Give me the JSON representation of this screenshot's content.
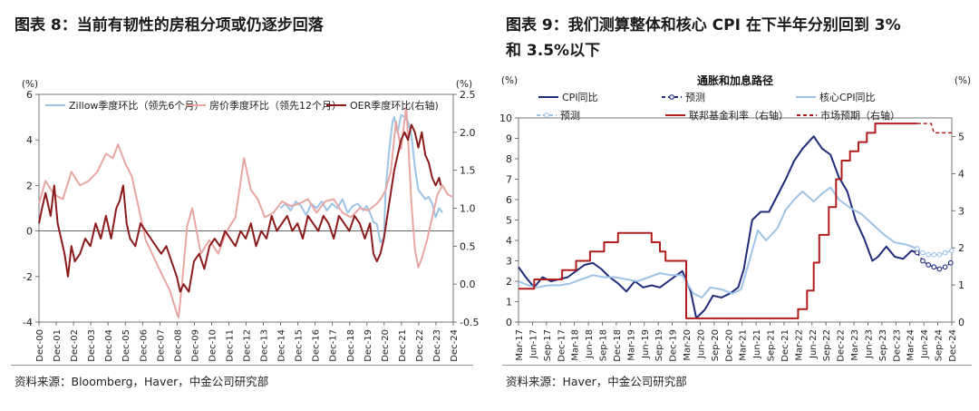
{
  "figures": [
    {
      "title": "图表 8：当前有韧性的房租分项或仍逐步回落",
      "source": "资料来源：Bloomberg，Haver，中金公司研究部"
    },
    {
      "title": "图表 9：我们测算整体和核心 CPI 在下半年分别回到 3%\n和 3.5%以下",
      "source": "资料来源：Haver，中金公司研究部"
    }
  ],
  "chart_data": [
    {
      "type": "line",
      "title": "",
      "y_left_unit": "(%)",
      "y_right_unit": "(%)",
      "ylim_left": [
        -4,
        6
      ],
      "ylim_right": [
        -0.5,
        2.5
      ],
      "yticks_left": [
        "-4",
        "-2",
        "0",
        "2",
        "4",
        "6"
      ],
      "yticks_right": [
        "-0.5",
        "0.0",
        "0.5",
        "1.0",
        "1.5",
        "2.0",
        "2.5"
      ],
      "xlim": [
        2000.92,
        2024.92
      ],
      "x_ticks": [
        "Dec-00",
        "Dec-01",
        "Dec-02",
        "Dec-03",
        "Dec-04",
        "Dec-05",
        "Dec-06",
        "Dec-07",
        "Dec-08",
        "Dec-09",
        "Dec-10",
        "Dec-11",
        "Dec-12",
        "Dec-13",
        "Dec-14",
        "Dec-15",
        "Dec-16",
        "Dec-17",
        "Dec-18",
        "Dec-19",
        "Dec-20",
        "Dec-21",
        "Dec-22",
        "Dec-23",
        "Dec-24"
      ],
      "legend_position": "top",
      "series": [
        {
          "name": "Zillow季度环比（领先6个月）",
          "color": "#9dc3e6",
          "axis": "left",
          "x": [
            2014.9,
            2015.2,
            2015.5,
            2015.8,
            2016.1,
            2016.4,
            2016.7,
            2017.0,
            2017.3,
            2017.6,
            2017.9,
            2018.2,
            2018.5,
            2018.8,
            2019.1,
            2019.4,
            2019.7,
            2019.9,
            2020.1,
            2020.3,
            2020.5,
            2020.7,
            2020.9,
            2021.0,
            2021.2,
            2021.4,
            2021.5,
            2021.7,
            2021.9,
            2022.1,
            2022.3,
            2022.5,
            2022.7,
            2022.9,
            2023.1,
            2023.3,
            2023.5,
            2023.7,
            2023.9,
            2024.1,
            2024.3
          ],
          "values": [
            1.0,
            1.2,
            0.9,
            1.3,
            1.1,
            0.7,
            1.2,
            1.0,
            1.3,
            0.9,
            1.2,
            1.0,
            1.4,
            0.8,
            1.1,
            1.2,
            0.9,
            1.1,
            0.8,
            0.4,
            0.3,
            -0.5,
            -0.3,
            1.8,
            3.5,
            4.8,
            5.0,
            4.3,
            5.1,
            5.0,
            4.8,
            4.2,
            2.8,
            1.8,
            1.6,
            1.4,
            1.5,
            1.2,
            0.6,
            1.0,
            0.8
          ]
        },
        {
          "name": "房价季度环比（领先12个月）",
          "color": "#e8a6a2",
          "axis": "left",
          "x": [
            2000.92,
            2001.3,
            2001.8,
            2002.3,
            2002.8,
            2003.3,
            2003.8,
            2004.3,
            2004.8,
            2005.2,
            2005.5,
            2005.9,
            2006.3,
            2006.7,
            2007.1,
            2007.6,
            2008.1,
            2008.5,
            2008.9,
            2009.0,
            2009.2,
            2009.5,
            2009.8,
            2010.3,
            2010.8,
            2011.3,
            2011.8,
            2012.3,
            2012.8,
            2013.2,
            2013.6,
            2014.0,
            2014.5,
            2015.0,
            2015.5,
            2016.0,
            2016.5,
            2017.0,
            2017.5,
            2018.0,
            2018.5,
            2019.0,
            2019.5,
            2020.0,
            2020.5,
            2020.8,
            2021.0,
            2021.3,
            2021.6,
            2021.9,
            2022.2,
            2022.5,
            2022.7,
            2022.9,
            2023.1,
            2023.4,
            2023.7,
            2024.0,
            2024.3,
            2024.6,
            2024.85
          ],
          "values": [
            1.2,
            2.2,
            1.6,
            1.4,
            2.6,
            2.0,
            2.2,
            2.6,
            3.4,
            3.2,
            3.8,
            3.0,
            2.4,
            1.0,
            -0.4,
            -1.2,
            -2.0,
            -2.6,
            -3.6,
            -3.8,
            -2.4,
            0.2,
            1.0,
            -1.0,
            -0.4,
            -1.0,
            0.0,
            0.6,
            3.2,
            1.8,
            1.4,
            0.6,
            0.8,
            1.3,
            1.1,
            1.2,
            1.4,
            0.8,
            1.3,
            1.4,
            0.8,
            0.6,
            1.0,
            0.9,
            1.2,
            1.5,
            1.8,
            2.6,
            4.8,
            3.6,
            5.5,
            1.2,
            -0.8,
            -1.6,
            -1.2,
            -0.4,
            0.6,
            1.6,
            2.0,
            1.6,
            1.5
          ]
        },
        {
          "name": "OER季度环比(右轴)",
          "color": "#8b1a1a",
          "axis": "right",
          "x": [
            2000.92,
            2001.1,
            2001.3,
            2001.6,
            2001.8,
            2002.0,
            2002.2,
            2002.4,
            2002.6,
            2002.8,
            2003.0,
            2003.3,
            2003.6,
            2003.9,
            2004.2,
            2004.5,
            2004.8,
            2005.1,
            2005.4,
            2005.6,
            2005.8,
            2006.0,
            2006.2,
            2006.5,
            2006.8,
            2007.1,
            2007.4,
            2007.7,
            2008.0,
            2008.3,
            2008.6,
            2008.9,
            2009.1,
            2009.3,
            2009.6,
            2009.9,
            2010.2,
            2010.5,
            2010.8,
            2011.1,
            2011.4,
            2011.7,
            2012.0,
            2012.3,
            2012.6,
            2012.9,
            2013.2,
            2013.5,
            2013.8,
            2014.1,
            2014.4,
            2014.7,
            2015.0,
            2015.3,
            2015.6,
            2015.9,
            2016.2,
            2016.5,
            2016.8,
            2017.1,
            2017.4,
            2017.7,
            2018.0,
            2018.3,
            2018.6,
            2018.9,
            2019.2,
            2019.5,
            2019.8,
            2020.1,
            2020.3,
            2020.5,
            2020.7,
            2020.9,
            2021.1,
            2021.3,
            2021.5,
            2021.7,
            2021.9,
            2022.1,
            2022.3,
            2022.5,
            2022.7,
            2022.9,
            2023.1,
            2023.3,
            2023.5,
            2023.7,
            2023.9,
            2024.1,
            2024.2
          ],
          "values": [
            0.8,
            1.0,
            1.2,
            0.9,
            1.3,
            0.8,
            0.6,
            0.4,
            0.1,
            0.5,
            0.3,
            0.4,
            0.6,
            0.5,
            0.8,
            0.6,
            0.9,
            0.6,
            1.0,
            1.1,
            1.3,
            0.8,
            0.6,
            0.5,
            0.8,
            0.7,
            0.6,
            0.5,
            0.4,
            0.5,
            0.3,
            0.1,
            -0.1,
            0.0,
            -0.1,
            0.3,
            0.4,
            0.2,
            0.5,
            0.6,
            0.5,
            0.7,
            0.6,
            0.5,
            0.7,
            0.6,
            0.8,
            0.5,
            0.7,
            0.6,
            0.9,
            0.7,
            0.8,
            0.9,
            0.7,
            0.8,
            0.6,
            0.9,
            0.8,
            0.7,
            0.9,
            0.8,
            0.6,
            0.9,
            0.8,
            0.7,
            0.9,
            0.8,
            0.6,
            0.8,
            0.4,
            0.3,
            0.4,
            0.6,
            0.9,
            1.2,
            1.5,
            1.7,
            1.9,
            2.0,
            1.9,
            2.1,
            2.0,
            1.8,
            2.0,
            1.7,
            1.6,
            1.4,
            1.3,
            1.4,
            1.3
          ]
        }
      ]
    },
    {
      "type": "line",
      "title": "通胀和加息路径",
      "y_left_unit": "(%)",
      "y_right_unit": "(%)",
      "ylim_left": [
        0,
        10
      ],
      "ylim_right": [
        0,
        5.5
      ],
      "yticks_left": [
        "0",
        "1",
        "2",
        "3",
        "4",
        "5",
        "6",
        "7",
        "8",
        "9",
        "10"
      ],
      "yticks_right": [
        "0",
        "1",
        "2",
        "3",
        "4",
        "5"
      ],
      "xlim": [
        2017.17,
        2024.92
      ],
      "x_ticks": [
        "Mar-17",
        "Jun-17",
        "Sep-17",
        "Dec-17",
        "Mar-18",
        "Jun-18",
        "Sep-18",
        "Dec-18",
        "Mar-19",
        "Jun-19",
        "Sep-19",
        "Dec-19",
        "Mar-20",
        "Jun-20",
        "Sep-20",
        "Dec-20",
        "Mar-21",
        "Jun-21",
        "Sep-21",
        "Dec-21",
        "Mar-22",
        "Jun-22",
        "Sep-22",
        "Dec-22",
        "Mar-23",
        "Jun-23",
        "Sep-23",
        "Dec-23",
        "Mar-24",
        "Jun-24",
        "Sep-24",
        "Dec-24"
      ],
      "legend_position": "top",
      "series": [
        {
          "name": "CPI同比",
          "color": "#1f2a7a",
          "axis": "left",
          "style": "solid",
          "x": [
            2017.17,
            2017.3,
            2017.45,
            2017.6,
            2017.75,
            2017.9,
            2018.05,
            2018.2,
            2018.35,
            2018.5,
            2018.65,
            2018.8,
            2018.95,
            2019.1,
            2019.25,
            2019.4,
            2019.55,
            2019.7,
            2019.85,
            2020.0,
            2020.1,
            2020.25,
            2020.35,
            2020.5,
            2020.65,
            2020.8,
            2020.95,
            2021.1,
            2021.2,
            2021.35,
            2021.5,
            2021.65,
            2021.8,
            2021.95,
            2022.1,
            2022.25,
            2022.45,
            2022.6,
            2022.75,
            2022.9,
            2023.05,
            2023.2,
            2023.35,
            2023.5,
            2023.6,
            2023.75,
            2023.9,
            2024.05,
            2024.2,
            2024.3
          ],
          "values": [
            2.7,
            2.2,
            1.7,
            2.2,
            2.0,
            2.1,
            2.2,
            2.5,
            2.8,
            2.9,
            2.6,
            2.2,
            1.9,
            1.5,
            2.0,
            1.7,
            1.8,
            1.7,
            2.0,
            2.3,
            2.5,
            1.5,
            0.2,
            0.6,
            1.3,
            1.2,
            1.4,
            1.7,
            2.6,
            5.0,
            5.4,
            5.4,
            6.2,
            7.0,
            7.9,
            8.5,
            9.1,
            8.5,
            8.2,
            7.1,
            6.4,
            5.0,
            4.1,
            3.0,
            3.2,
            3.7,
            3.2,
            3.1,
            3.5,
            3.4
          ]
        },
        {
          "name": "预测",
          "color": "#1f2a7a",
          "axis": "left",
          "style": "dash-marker",
          "x": [
            2024.3,
            2024.4,
            2024.5,
            2024.6,
            2024.7,
            2024.8,
            2024.9
          ],
          "values": [
            3.4,
            3.0,
            2.8,
            2.7,
            2.6,
            2.7,
            2.9
          ]
        },
        {
          "name": "核心CPI同比",
          "color": "#9dc3e6",
          "axis": "left",
          "style": "solid",
          "x": [
            2017.17,
            2017.35,
            2017.5,
            2017.7,
            2017.9,
            2018.1,
            2018.3,
            2018.5,
            2018.7,
            2018.9,
            2019.1,
            2019.3,
            2019.5,
            2019.7,
            2019.9,
            2020.1,
            2020.3,
            2020.45,
            2020.6,
            2020.8,
            2021.0,
            2021.15,
            2021.3,
            2021.45,
            2021.6,
            2021.8,
            2021.95,
            2022.1,
            2022.25,
            2022.45,
            2022.6,
            2022.75,
            2022.9,
            2023.1,
            2023.3,
            2023.5,
            2023.7,
            2023.9,
            2024.1,
            2024.3
          ],
          "values": [
            2.0,
            1.8,
            1.7,
            1.8,
            1.8,
            1.9,
            2.1,
            2.3,
            2.2,
            2.2,
            2.1,
            2.0,
            2.2,
            2.4,
            2.3,
            2.3,
            1.4,
            1.2,
            1.7,
            1.6,
            1.4,
            1.6,
            3.0,
            4.5,
            4.0,
            4.6,
            5.5,
            6.0,
            6.4,
            5.9,
            6.3,
            6.6,
            6.0,
            5.6,
            5.3,
            4.8,
            4.3,
            3.9,
            3.8,
            3.6
          ]
        },
        {
          "name": "预测",
          "color": "#9dc3e6",
          "axis": "left",
          "style": "dash-marker",
          "x": [
            2024.3,
            2024.4,
            2024.5,
            2024.6,
            2024.7,
            2024.8,
            2024.92
          ],
          "values": [
            3.6,
            3.4,
            3.3,
            3.3,
            3.3,
            3.4,
            3.5
          ]
        },
        {
          "name": "联邦基金利率（右轴）",
          "color": "#b11d1d",
          "axis": "right",
          "style": "step",
          "x": [
            2017.17,
            2017.45,
            2017.95,
            2018.2,
            2018.45,
            2018.7,
            2018.95,
            2019.55,
            2019.7,
            2019.8,
            2020.17,
            2022.17,
            2022.33,
            2022.45,
            2022.55,
            2022.72,
            2022.85,
            2022.95,
            2023.1,
            2023.25,
            2023.4,
            2023.55,
            2024.3
          ],
          "values": [
            0.9,
            1.15,
            1.4,
            1.65,
            1.9,
            2.15,
            2.4,
            2.15,
            1.9,
            1.65,
            0.1,
            0.35,
            0.85,
            1.6,
            2.35,
            3.1,
            3.85,
            4.35,
            4.6,
            4.85,
            5.1,
            5.35,
            5.35
          ]
        },
        {
          "name": "市场预期（右轴）",
          "color": "#b11d1d",
          "axis": "right",
          "style": "dash",
          "x": [
            2024.3,
            2024.55,
            2024.6,
            2024.75,
            2024.92
          ],
          "values": [
            5.35,
            5.35,
            5.1,
            5.1,
            5.1
          ]
        }
      ]
    }
  ]
}
